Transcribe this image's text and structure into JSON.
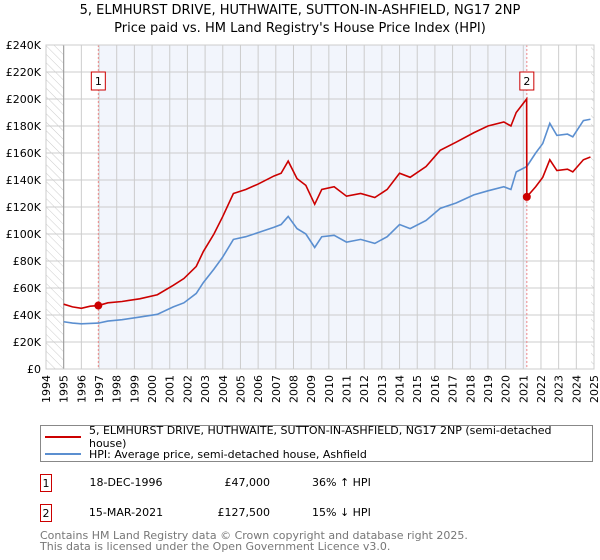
{
  "chart_data": {
    "type": "line",
    "title": "5, ELMHURST DRIVE, HUTHWAITE, SUTTON-IN-ASHFIELD, NG17 2NP",
    "subtitle": "Price paid vs. HM Land Registry's House Price Index (HPI)",
    "xlim": [
      1994,
      2025
    ],
    "ylim": [
      0,
      240000
    ],
    "x_ticks": [
      "1994",
      "1995",
      "1996",
      "1997",
      "1998",
      "1999",
      "2000",
      "2001",
      "2002",
      "2003",
      "2004",
      "2005",
      "2006",
      "2007",
      "2008",
      "2009",
      "2010",
      "2011",
      "2012",
      "2013",
      "2014",
      "2015",
      "2016",
      "2017",
      "2018",
      "2019",
      "2020",
      "2021",
      "2022",
      "2023",
      "2024",
      "2025"
    ],
    "y_ticks": [
      {
        "v": 0,
        "label": "£0"
      },
      {
        "v": 20000,
        "label": "£20K"
      },
      {
        "v": 40000,
        "label": "£40K"
      },
      {
        "v": 60000,
        "label": "£60K"
      },
      {
        "v": 80000,
        "label": "£80K"
      },
      {
        "v": 100000,
        "label": "£100K"
      },
      {
        "v": 120000,
        "label": "£120K"
      },
      {
        "v": 140000,
        "label": "£140K"
      },
      {
        "v": 160000,
        "label": "£160K"
      },
      {
        "v": 180000,
        "label": "£180K"
      },
      {
        "v": 200000,
        "label": "£200K"
      },
      {
        "v": 220000,
        "label": "£220K"
      },
      {
        "v": 240000,
        "label": "£240K"
      }
    ],
    "grid": true,
    "series": [
      {
        "name": "5, ELMHURST DRIVE, HUTHWAITE, SUTTON-IN-ASHFIELD, NG17 2NP (semi-detached house)",
        "color": "#cc0000",
        "points": [
          [
            1995.0,
            48000
          ],
          [
            1995.5,
            46000
          ],
          [
            1996.0,
            45000
          ],
          [
            1996.5,
            46500
          ],
          [
            1996.96,
            47000
          ],
          [
            1997.5,
            49000
          ],
          [
            1998.3,
            50000
          ],
          [
            1999.3,
            52000
          ],
          [
            2000.3,
            55000
          ],
          [
            2001.2,
            62000
          ],
          [
            2001.8,
            67000
          ],
          [
            2002.5,
            76000
          ],
          [
            2002.9,
            87000
          ],
          [
            2003.5,
            100000
          ],
          [
            2004.0,
            113000
          ],
          [
            2004.6,
            130000
          ],
          [
            2005.3,
            133000
          ],
          [
            2006.0,
            137000
          ],
          [
            2006.9,
            143000
          ],
          [
            2007.3,
            145000
          ],
          [
            2007.7,
            154000
          ],
          [
            2008.2,
            141000
          ],
          [
            2008.7,
            136000
          ],
          [
            2009.2,
            122000
          ],
          [
            2009.6,
            133000
          ],
          [
            2010.3,
            135000
          ],
          [
            2011.0,
            128000
          ],
          [
            2011.8,
            130000
          ],
          [
            2012.6,
            127000
          ],
          [
            2013.3,
            133000
          ],
          [
            2014.0,
            145000
          ],
          [
            2014.6,
            142000
          ],
          [
            2015.5,
            150000
          ],
          [
            2016.3,
            162000
          ],
          [
            2017.2,
            168000
          ],
          [
            2018.2,
            175000
          ],
          [
            2019.0,
            180000
          ],
          [
            2019.9,
            183000
          ],
          [
            2020.3,
            180000
          ],
          [
            2020.6,
            190000
          ],
          [
            2021.19,
            200000
          ],
          [
            2021.2,
            127500
          ],
          [
            2021.7,
            135000
          ],
          [
            2022.1,
            142000
          ],
          [
            2022.5,
            155000
          ],
          [
            2022.9,
            147000
          ],
          [
            2023.5,
            148000
          ],
          [
            2023.8,
            146000
          ],
          [
            2024.4,
            155000
          ],
          [
            2024.8,
            157000
          ]
        ]
      },
      {
        "name": "HPI: Average price, semi-detached house, Ashfield",
        "color": "#5b8fd0",
        "points": [
          [
            1995.0,
            35000
          ],
          [
            1995.5,
            34000
          ],
          [
            1996.0,
            33500
          ],
          [
            1996.96,
            34000
          ],
          [
            1997.5,
            35500
          ],
          [
            1998.3,
            36500
          ],
          [
            1999.3,
            38500
          ],
          [
            2000.3,
            40500
          ],
          [
            2001.2,
            46000
          ],
          [
            2001.8,
            49000
          ],
          [
            2002.5,
            56000
          ],
          [
            2002.9,
            64000
          ],
          [
            2003.5,
            74000
          ],
          [
            2004.0,
            83000
          ],
          [
            2004.6,
            96000
          ],
          [
            2005.3,
            98000
          ],
          [
            2006.0,
            101000
          ],
          [
            2006.9,
            105000
          ],
          [
            2007.3,
            107000
          ],
          [
            2007.7,
            113000
          ],
          [
            2008.2,
            104000
          ],
          [
            2008.7,
            100000
          ],
          [
            2009.2,
            90000
          ],
          [
            2009.6,
            98000
          ],
          [
            2010.3,
            99000
          ],
          [
            2011.0,
            94000
          ],
          [
            2011.8,
            96000
          ],
          [
            2012.6,
            93000
          ],
          [
            2013.3,
            98000
          ],
          [
            2014.0,
            107000
          ],
          [
            2014.6,
            104000
          ],
          [
            2015.5,
            110000
          ],
          [
            2016.3,
            119000
          ],
          [
            2017.2,
            123000
          ],
          [
            2018.2,
            129000
          ],
          [
            2019.0,
            132000
          ],
          [
            2019.9,
            135000
          ],
          [
            2020.3,
            133000
          ],
          [
            2020.6,
            146000
          ],
          [
            2021.2,
            150000
          ],
          [
            2021.7,
            160000
          ],
          [
            2022.1,
            167000
          ],
          [
            2022.5,
            182000
          ],
          [
            2022.9,
            173000
          ],
          [
            2023.5,
            174000
          ],
          [
            2023.8,
            172000
          ],
          [
            2024.4,
            184000
          ],
          [
            2024.8,
            185000
          ]
        ]
      }
    ],
    "annotations": [
      {
        "label": "1",
        "x": 1996.96,
        "y": 47000
      },
      {
        "label": "2",
        "x": 2021.2,
        "y": 127500
      }
    ]
  },
  "legend": {
    "items": [
      "5, ELMHURST DRIVE, HUTHWAITE, SUTTON-IN-ASHFIELD, NG17 2NP (semi-detached house)",
      "HPI: Average price, semi-detached house, Ashfield"
    ]
  },
  "sales": [
    {
      "num": "1",
      "date": "18-DEC-1996",
      "price": "£47,000",
      "hpi": "36% ↑ HPI"
    },
    {
      "num": "2",
      "date": "15-MAR-2021",
      "price": "£127,500",
      "hpi": "15% ↓ HPI"
    }
  ],
  "footer": {
    "line1": "Contains HM Land Registry data © Crown copyright and database right 2025.",
    "line2": "This data is licensed under the Open Government Licence v3.0."
  }
}
